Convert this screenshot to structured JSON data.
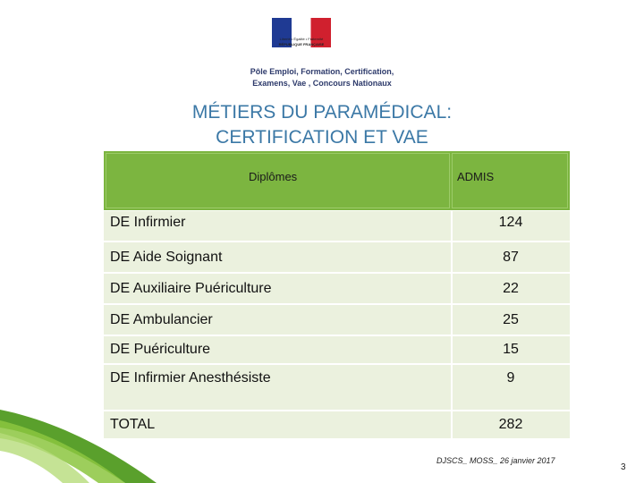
{
  "header": {
    "logo_line1": "Liberté • Égalité • Fraternité",
    "logo_line2": "RÉPUBLIQUE FRANÇAISE",
    "office_line1": "Pôle Emploi, Formation, Certification,",
    "office_line2": "Examens, Vae , Concours Nationaux"
  },
  "title": {
    "line1": "MÉTIERS DU PARAMÉDICAL:",
    "line2": "CERTIFICATION ET VAE"
  },
  "table": {
    "col_diplomes": "Diplômes",
    "col_admis": "ADMIS",
    "rows": [
      {
        "label": "DE Infirmier",
        "value": "124"
      },
      {
        "label": "DE Aide Soignant",
        "value": "87"
      },
      {
        "label": "DE Auxiliaire Puériculture",
        "value": "22"
      },
      {
        "label": "DE Ambulancier",
        "value": "25"
      },
      {
        "label": "DE Puériculture",
        "value": "15"
      },
      {
        "label": "DE Infirmier Anesthésiste",
        "value": "9"
      },
      {
        "label": "TOTAL",
        "value": "282"
      }
    ]
  },
  "footer": {
    "text": "DJSCS_ MOSS_ 26 janvier 2017",
    "page": "3"
  },
  "colors": {
    "header_green": "#7cb540",
    "row_bg": "#ebf1de",
    "title_blue": "#3b78a6"
  }
}
